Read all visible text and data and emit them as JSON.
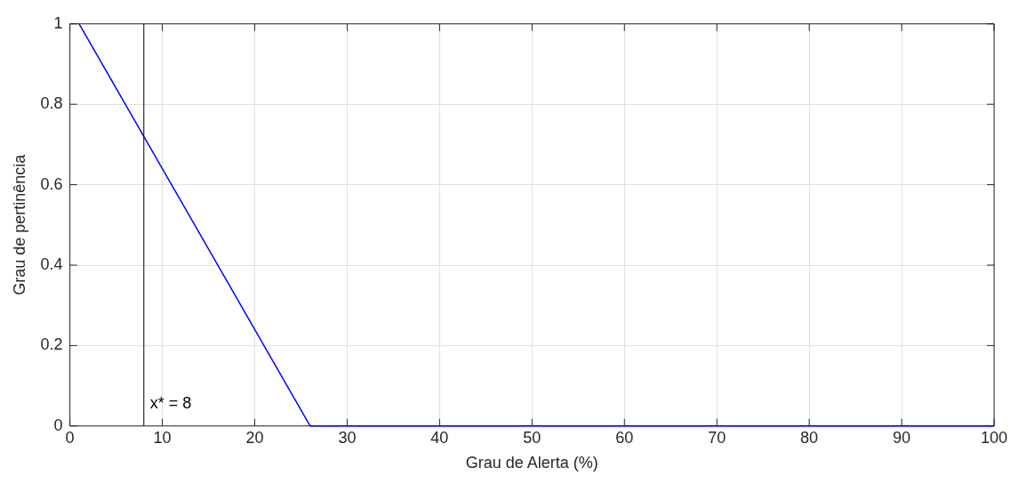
{
  "chart_data": {
    "type": "line",
    "xlabel": "Grau de Alerta (%)",
    "ylabel": "Grau de pertinência",
    "series": [
      {
        "color": "#0000ff",
        "x": [
          1,
          26,
          100
        ],
        "values": [
          1,
          0,
          0
        ]
      }
    ],
    "xlim": [
      0,
      100
    ],
    "xticks": [
      0,
      10,
      20,
      30,
      40,
      50,
      60,
      70,
      80,
      90,
      100
    ],
    "ylim": [
      0,
      1
    ],
    "yticks": [
      0,
      0.2,
      0.4,
      0.6,
      0.8,
      1
    ],
    "grid": true,
    "legend": false,
    "marker": "none",
    "line_style": "solid",
    "ref_lines": [
      {
        "axis": "x",
        "value": 8,
        "label": "x* = 8",
        "color": "#000000"
      }
    ]
  }
}
